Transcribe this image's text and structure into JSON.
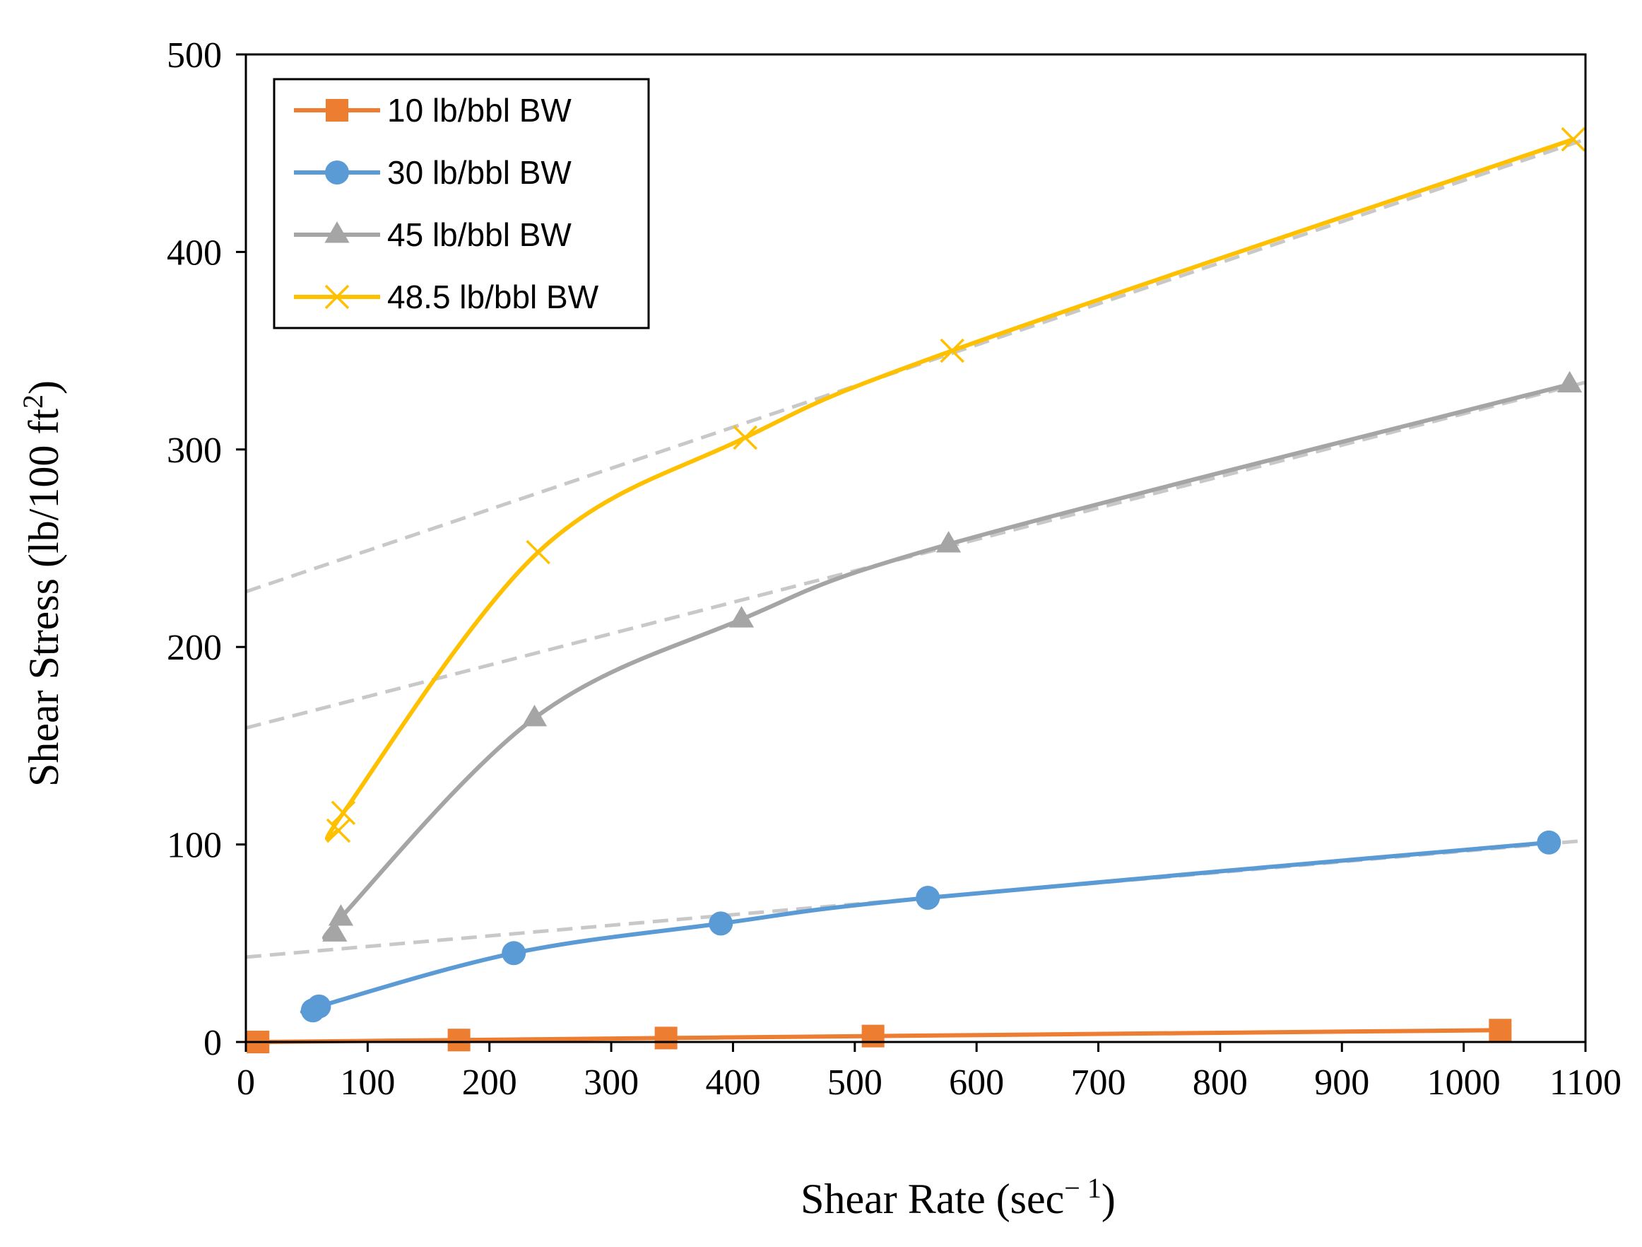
{
  "chart_data": {
    "type": "line",
    "title": "",
    "xlabel": "Shear Rate (sec",
    "xlabel_sup": "− 1",
    "xlabel_tail": ")",
    "ylabel": "Shear Stress (lb/100 ft",
    "ylabel_sup": "2",
    "ylabel_tail": ")",
    "xlim": [
      0,
      1100
    ],
    "ylim": [
      0,
      500
    ],
    "x_ticks": [
      0,
      100,
      200,
      300,
      400,
      500,
      600,
      700,
      800,
      900,
      1000,
      1100
    ],
    "y_ticks": [
      0,
      100,
      200,
      300,
      400,
      500
    ],
    "grid": false,
    "legend_position": "top-left",
    "series": [
      {
        "name": "10 lb/bbl BW",
        "color": "#ED7D31",
        "marker": "square",
        "x": [
          10,
          175,
          345,
          515,
          1030
        ],
        "y": [
          0,
          1,
          2,
          3,
          6
        ]
      },
      {
        "name": "30 lb/bbl BW",
        "color": "#5B9BD5",
        "marker": "circle",
        "x": [
          55,
          60,
          220,
          390,
          560,
          1070
        ],
        "y": [
          16,
          18,
          45,
          60,
          73,
          101
        ]
      },
      {
        "name": "45 lb/bbl BW",
        "color": "#A5A5A5",
        "marker": "triangle",
        "x": [
          73,
          78,
          237,
          407,
          577,
          1087
        ],
        "y": [
          55,
          63,
          164,
          214,
          252,
          333
        ]
      },
      {
        "name": "48.5 lb/bbl BW",
        "color": "#FFC000",
        "marker": "x",
        "x": [
          76,
          80,
          240,
          410,
          580,
          1090
        ],
        "y": [
          107,
          116,
          248,
          306,
          350,
          457
        ]
      }
    ],
    "trendlines": [
      {
        "series": "30 lb/bbl BW",
        "color": "#C8C8C8",
        "x": [
          0,
          1100
        ],
        "y": [
          43,
          102
        ]
      },
      {
        "series": "45 lb/bbl BW",
        "color": "#C8C8C8",
        "x": [
          0,
          1100
        ],
        "y": [
          159,
          334
        ]
      },
      {
        "series": "48.5 lb/bbl BW",
        "color": "#C8C8C8",
        "x": [
          0,
          1100
        ],
        "y": [
          228,
          457
        ]
      }
    ]
  }
}
